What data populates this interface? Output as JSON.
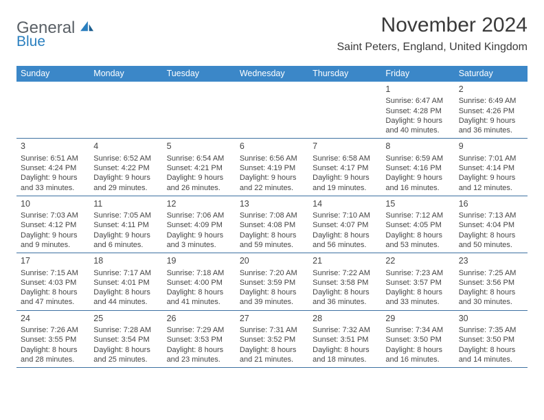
{
  "brand": {
    "main": "General",
    "sub": "Blue"
  },
  "title": "November 2024",
  "location": "Saint Peters, England, United Kingdom",
  "colors": {
    "header_bg": "#3b87c8",
    "header_fg": "#ffffff",
    "row_border": "#3b6fa0",
    "text": "#3a3a3a",
    "logo_gray": "#5a6066",
    "logo_blue": "#2a7fbf"
  },
  "weekdays": [
    "Sunday",
    "Monday",
    "Tuesday",
    "Wednesday",
    "Thursday",
    "Friday",
    "Saturday"
  ],
  "weeks": [
    [
      null,
      null,
      null,
      null,
      null,
      {
        "n": "1",
        "sr": "6:47 AM",
        "ss": "4:28 PM",
        "dl1": "Daylight: 9 hours",
        "dl2": "and 40 minutes."
      },
      {
        "n": "2",
        "sr": "6:49 AM",
        "ss": "4:26 PM",
        "dl1": "Daylight: 9 hours",
        "dl2": "and 36 minutes."
      }
    ],
    [
      {
        "n": "3",
        "sr": "6:51 AM",
        "ss": "4:24 PM",
        "dl1": "Daylight: 9 hours",
        "dl2": "and 33 minutes."
      },
      {
        "n": "4",
        "sr": "6:52 AM",
        "ss": "4:22 PM",
        "dl1": "Daylight: 9 hours",
        "dl2": "and 29 minutes."
      },
      {
        "n": "5",
        "sr": "6:54 AM",
        "ss": "4:21 PM",
        "dl1": "Daylight: 9 hours",
        "dl2": "and 26 minutes."
      },
      {
        "n": "6",
        "sr": "6:56 AM",
        "ss": "4:19 PM",
        "dl1": "Daylight: 9 hours",
        "dl2": "and 22 minutes."
      },
      {
        "n": "7",
        "sr": "6:58 AM",
        "ss": "4:17 PM",
        "dl1": "Daylight: 9 hours",
        "dl2": "and 19 minutes."
      },
      {
        "n": "8",
        "sr": "6:59 AM",
        "ss": "4:16 PM",
        "dl1": "Daylight: 9 hours",
        "dl2": "and 16 minutes."
      },
      {
        "n": "9",
        "sr": "7:01 AM",
        "ss": "4:14 PM",
        "dl1": "Daylight: 9 hours",
        "dl2": "and 12 minutes."
      }
    ],
    [
      {
        "n": "10",
        "sr": "7:03 AM",
        "ss": "4:12 PM",
        "dl1": "Daylight: 9 hours",
        "dl2": "and 9 minutes."
      },
      {
        "n": "11",
        "sr": "7:05 AM",
        "ss": "4:11 PM",
        "dl1": "Daylight: 9 hours",
        "dl2": "and 6 minutes."
      },
      {
        "n": "12",
        "sr": "7:06 AM",
        "ss": "4:09 PM",
        "dl1": "Daylight: 9 hours",
        "dl2": "and 3 minutes."
      },
      {
        "n": "13",
        "sr": "7:08 AM",
        "ss": "4:08 PM",
        "dl1": "Daylight: 8 hours",
        "dl2": "and 59 minutes."
      },
      {
        "n": "14",
        "sr": "7:10 AM",
        "ss": "4:07 PM",
        "dl1": "Daylight: 8 hours",
        "dl2": "and 56 minutes."
      },
      {
        "n": "15",
        "sr": "7:12 AM",
        "ss": "4:05 PM",
        "dl1": "Daylight: 8 hours",
        "dl2": "and 53 minutes."
      },
      {
        "n": "16",
        "sr": "7:13 AM",
        "ss": "4:04 PM",
        "dl1": "Daylight: 8 hours",
        "dl2": "and 50 minutes."
      }
    ],
    [
      {
        "n": "17",
        "sr": "7:15 AM",
        "ss": "4:03 PM",
        "dl1": "Daylight: 8 hours",
        "dl2": "and 47 minutes."
      },
      {
        "n": "18",
        "sr": "7:17 AM",
        "ss": "4:01 PM",
        "dl1": "Daylight: 8 hours",
        "dl2": "and 44 minutes."
      },
      {
        "n": "19",
        "sr": "7:18 AM",
        "ss": "4:00 PM",
        "dl1": "Daylight: 8 hours",
        "dl2": "and 41 minutes."
      },
      {
        "n": "20",
        "sr": "7:20 AM",
        "ss": "3:59 PM",
        "dl1": "Daylight: 8 hours",
        "dl2": "and 39 minutes."
      },
      {
        "n": "21",
        "sr": "7:22 AM",
        "ss": "3:58 PM",
        "dl1": "Daylight: 8 hours",
        "dl2": "and 36 minutes."
      },
      {
        "n": "22",
        "sr": "7:23 AM",
        "ss": "3:57 PM",
        "dl1": "Daylight: 8 hours",
        "dl2": "and 33 minutes."
      },
      {
        "n": "23",
        "sr": "7:25 AM",
        "ss": "3:56 PM",
        "dl1": "Daylight: 8 hours",
        "dl2": "and 30 minutes."
      }
    ],
    [
      {
        "n": "24",
        "sr": "7:26 AM",
        "ss": "3:55 PM",
        "dl1": "Daylight: 8 hours",
        "dl2": "and 28 minutes."
      },
      {
        "n": "25",
        "sr": "7:28 AM",
        "ss": "3:54 PM",
        "dl1": "Daylight: 8 hours",
        "dl2": "and 25 minutes."
      },
      {
        "n": "26",
        "sr": "7:29 AM",
        "ss": "3:53 PM",
        "dl1": "Daylight: 8 hours",
        "dl2": "and 23 minutes."
      },
      {
        "n": "27",
        "sr": "7:31 AM",
        "ss": "3:52 PM",
        "dl1": "Daylight: 8 hours",
        "dl2": "and 21 minutes."
      },
      {
        "n": "28",
        "sr": "7:32 AM",
        "ss": "3:51 PM",
        "dl1": "Daylight: 8 hours",
        "dl2": "and 18 minutes."
      },
      {
        "n": "29",
        "sr": "7:34 AM",
        "ss": "3:50 PM",
        "dl1": "Daylight: 8 hours",
        "dl2": "and 16 minutes."
      },
      {
        "n": "30",
        "sr": "7:35 AM",
        "ss": "3:50 PM",
        "dl1": "Daylight: 8 hours",
        "dl2": "and 14 minutes."
      }
    ]
  ],
  "labels": {
    "sunrise": "Sunrise: ",
    "sunset": "Sunset: "
  }
}
